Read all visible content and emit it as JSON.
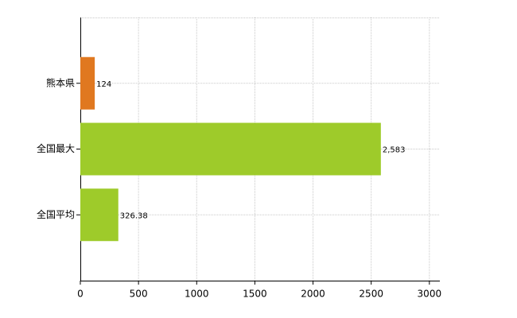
{
  "chart_data": {
    "type": "hbar",
    "categories": [
      "熊本県",
      "全国最大",
      "全国平均"
    ],
    "values": [
      124,
      2583,
      326.38
    ],
    "value_labels": [
      "124",
      "2,583",
      "326.38"
    ],
    "colors": [
      "#e07820",
      "#9ecb2a",
      "#9ecb2a"
    ],
    "xlim": [
      0,
      3090
    ],
    "xticks": [
      0,
      500,
      1000,
      1500,
      2000,
      2500,
      3000
    ],
    "grid": true
  }
}
